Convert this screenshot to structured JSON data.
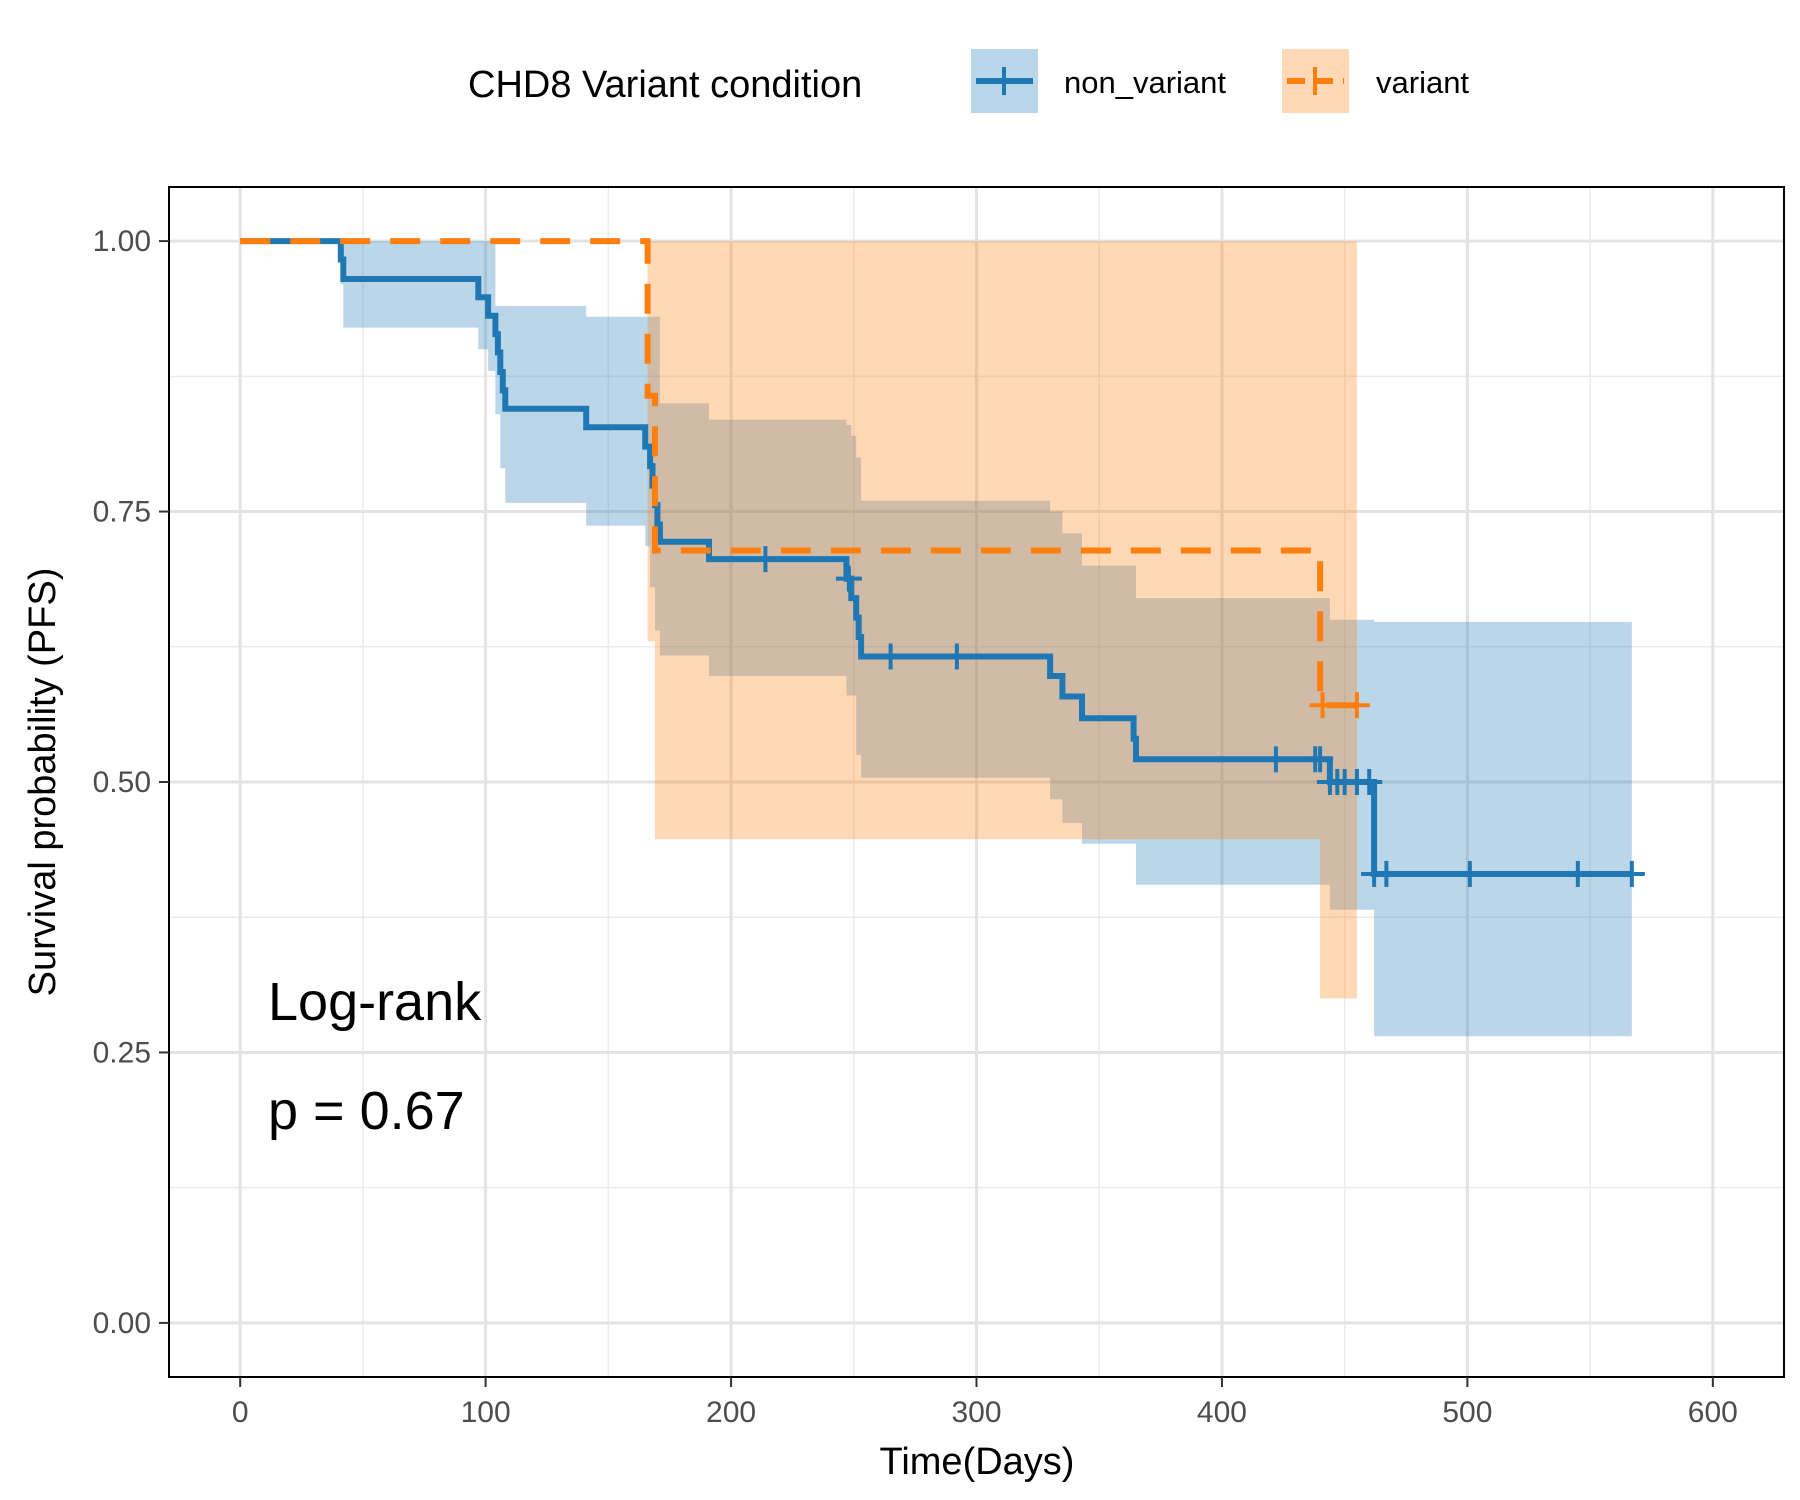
{
  "chart_data": {
    "type": "line",
    "subtype": "kaplan-meier step plot with confidence bands and censor marks",
    "xlabel": "Time(Days)",
    "ylabel": "Survival probability (PFS)",
    "xlim": [
      -29,
      629
    ],
    "ylim": [
      -0.05,
      1.05
    ],
    "x_ticks": [
      0,
      100,
      200,
      300,
      400,
      500,
      600
    ],
    "x_tick_labels": [
      "0",
      "100",
      "200",
      "300",
      "400",
      "500",
      "600"
    ],
    "y_ticks": [
      0,
      0.25,
      0.5,
      0.75,
      1
    ],
    "y_tick_labels": [
      "0.00",
      "0.25",
      "0.50",
      "0.75",
      "1.00"
    ],
    "grid": true,
    "legend": {
      "title": "CHD8 Variant condition",
      "position": "top",
      "entries": [
        "non_variant",
        "variant"
      ]
    },
    "annotations": [
      "Log-rank",
      "p = 0.67"
    ],
    "series": [
      {
        "name": "non_variant",
        "color": "#1f77b4",
        "line_style": "solid",
        "x_end": 567,
        "steps": [
          [
            0,
            1.0
          ],
          [
            41,
            0.983
          ],
          [
            42,
            0.965
          ],
          [
            97,
            0.948
          ],
          [
            101,
            0.931
          ],
          [
            104,
            0.914
          ],
          [
            105,
            0.897
          ],
          [
            106,
            0.879
          ],
          [
            107,
            0.862
          ],
          [
            108,
            0.845
          ],
          [
            141,
            0.828
          ],
          [
            165,
            0.81
          ],
          [
            167,
            0.792
          ],
          [
            168,
            0.774
          ],
          [
            169,
            0.756
          ],
          [
            170,
            0.738
          ],
          [
            171,
            0.722
          ],
          [
            191,
            0.706
          ],
          [
            247,
            0.688
          ],
          [
            249,
            0.67
          ],
          [
            251,
            0.652
          ],
          [
            252,
            0.634
          ],
          [
            253,
            0.616
          ],
          [
            330,
            0.598
          ],
          [
            335,
            0.579
          ],
          [
            343,
            0.559
          ],
          [
            364,
            0.54
          ],
          [
            365,
            0.521
          ],
          [
            444,
            0.5
          ],
          [
            462,
            0.415
          ]
        ],
        "censored_x": [
          214,
          248,
          265,
          292,
          422,
          438,
          440,
          444,
          447,
          450,
          455,
          460,
          462,
          467,
          501,
          545,
          567
        ],
        "ci_upper": [
          [
            0,
            1.0
          ],
          [
            104,
            0.94
          ],
          [
            108,
            0.94
          ],
          [
            141,
            0.93
          ],
          [
            165,
            0.93
          ],
          [
            171,
            0.85
          ],
          [
            191,
            0.835
          ],
          [
            247,
            0.83
          ],
          [
            249,
            0.82
          ],
          [
            251,
            0.8
          ],
          [
            253,
            0.76
          ],
          [
            330,
            0.75
          ],
          [
            335,
            0.73
          ],
          [
            343,
            0.7
          ],
          [
            365,
            0.67
          ],
          [
            444,
            0.65
          ],
          [
            462,
            0.648
          ],
          [
            567,
            0.648
          ]
        ],
        "ci_lower": [
          [
            0,
            1.0
          ],
          [
            41,
            0.96
          ],
          [
            42,
            0.92
          ],
          [
            97,
            0.9
          ],
          [
            101,
            0.88
          ],
          [
            104,
            0.84
          ],
          [
            106,
            0.79
          ],
          [
            108,
            0.758
          ],
          [
            141,
            0.737
          ],
          [
            165,
            0.718
          ],
          [
            167,
            0.68
          ],
          [
            169,
            0.64
          ],
          [
            171,
            0.617
          ],
          [
            191,
            0.598
          ],
          [
            247,
            0.58
          ],
          [
            251,
            0.525
          ],
          [
            253,
            0.504
          ],
          [
            330,
            0.484
          ],
          [
            335,
            0.462
          ],
          [
            343,
            0.443
          ],
          [
            365,
            0.405
          ],
          [
            444,
            0.382
          ],
          [
            462,
            0.265
          ],
          [
            567,
            0.265
          ]
        ]
      },
      {
        "name": "variant",
        "color": "#ff7f0e",
        "line_style": "dashed",
        "x_end": 455,
        "steps": [
          [
            0,
            1.0
          ],
          [
            166,
            0.857
          ],
          [
            169,
            0.714
          ],
          [
            440,
            0.571
          ]
        ],
        "censored_x": [
          441,
          455
        ],
        "ci_upper": [
          [
            0,
            1.0
          ],
          [
            455,
            1.0
          ]
        ],
        "ci_lower": [
          [
            0,
            1.0
          ],
          [
            166,
            0.63
          ],
          [
            169,
            0.447
          ],
          [
            440,
            0.3
          ],
          [
            455,
            0.3
          ]
        ]
      }
    ]
  }
}
